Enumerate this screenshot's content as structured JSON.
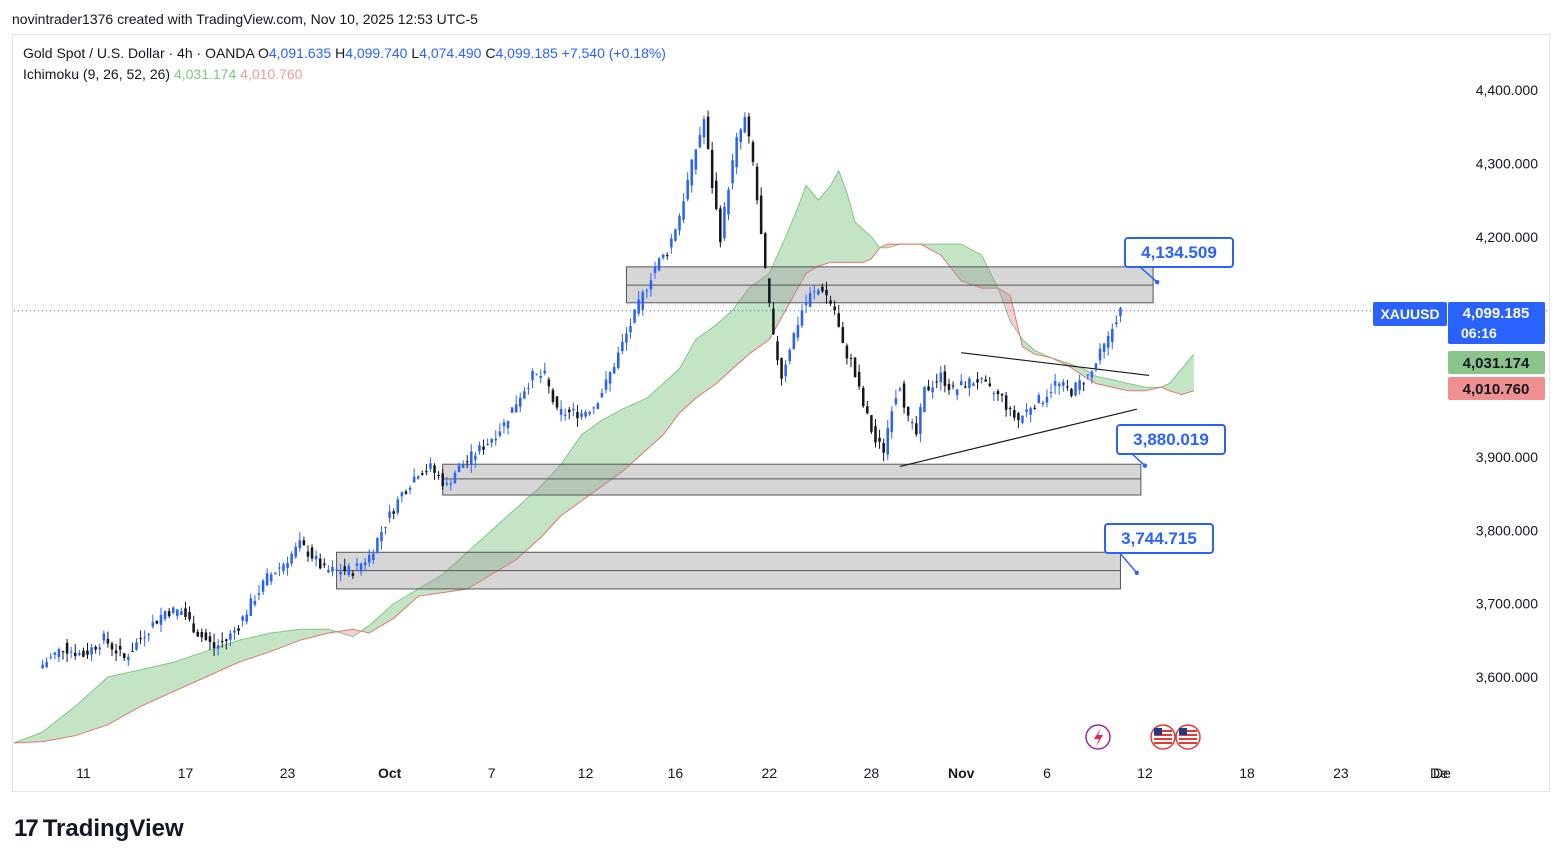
{
  "header": {
    "caption": "novintrader1376 created with TradingView.com, Nov 10, 2025 12:53 UTC-5"
  },
  "legend": {
    "symbol_line": "Gold Spot / U.S. Dollar · 4h · OANDA",
    "open_label": "O",
    "open": "4,091.635",
    "high_label": "H",
    "high": "4,099.740",
    "low_label": "L",
    "low": "4,074.490",
    "close_label": "C",
    "close": "4,099.185",
    "change": "+7.540 (+0.18%)",
    "indicator": "Ichimoku (9, 26, 52, 26)",
    "ind_value_1": "4,031.174",
    "ind_value_2": "4,010.760"
  },
  "footer": {
    "brand": "TradingView"
  },
  "colors": {
    "up": "#2962ff",
    "down": "#131722",
    "cloud_bull": "#a5d6a7",
    "cloud_bear": "#f7b8b8",
    "label_blue": "#2962ff",
    "price_green": "#8bc48b",
    "price_red": "#ef8f8f"
  },
  "chart_data": {
    "type": "candlestick",
    "title": "Gold Spot / U.S. Dollar · 4h · OANDA",
    "ylim": [
      3500,
      4440
    ],
    "y_ticks": [
      "4,400.000",
      "4,300.000",
      "4,200.000",
      "4,100.000",
      "4,000.000",
      "3,900.000",
      "3,800.000",
      "3,700.000",
      "3,600.000"
    ],
    "y_tick_values": [
      4400,
      4300,
      4200,
      4100,
      4000,
      3900,
      3800,
      3700,
      3600
    ],
    "x_ticks": [
      "11",
      "17",
      "23",
      "Oct",
      "7",
      "12",
      "16",
      "22",
      "28",
      "Nov",
      "6",
      "12",
      "18",
      "23",
      "De"
    ],
    "x_tick_index": [
      10,
      35,
      60,
      85,
      110,
      133,
      155,
      178,
      203,
      225,
      246,
      270,
      295,
      318,
      342
    ],
    "x_range": [
      -7,
      343
    ],
    "price_path": [
      [
        0,
        3617
      ],
      [
        5,
        3640
      ],
      [
        10,
        3630
      ],
      [
        15,
        3652
      ],
      [
        20,
        3625
      ],
      [
        25,
        3660
      ],
      [
        30,
        3690
      ],
      [
        34,
        3690
      ],
      [
        38,
        3660
      ],
      [
        42,
        3640
      ],
      [
        45,
        3650
      ],
      [
        48,
        3670
      ],
      [
        51,
        3700
      ],
      [
        55,
        3735
      ],
      [
        59,
        3755
      ],
      [
        63,
        3780
      ],
      [
        66,
        3765
      ],
      [
        69,
        3745
      ],
      [
        72,
        3745
      ],
      [
        76,
        3745
      ],
      [
        80,
        3765
      ],
      [
        84,
        3810
      ],
      [
        88,
        3850
      ],
      [
        92,
        3880
      ],
      [
        95,
        3885
      ],
      [
        99,
        3860
      ],
      [
        101,
        3880
      ],
      [
        105,
        3900
      ],
      [
        109,
        3920
      ],
      [
        113,
        3945
      ],
      [
        117,
        3985
      ],
      [
        120,
        4010
      ],
      [
        123,
        4010
      ],
      [
        126,
        3960
      ],
      [
        129,
        3960
      ],
      [
        132,
        3960
      ],
      [
        135,
        3970
      ],
      [
        138,
        4000
      ],
      [
        141,
        4040
      ],
      [
        144,
        4080
      ],
      [
        147,
        4120
      ],
      [
        150,
        4160
      ],
      [
        153,
        4180
      ],
      [
        156,
        4230
      ],
      [
        160,
        4320
      ],
      [
        162,
        4360
      ],
      [
        164,
        4270
      ],
      [
        166,
        4200
      ],
      [
        168,
        4270
      ],
      [
        170,
        4330
      ],
      [
        172,
        4360
      ],
      [
        174,
        4300
      ],
      [
        177,
        4150
      ],
      [
        179,
        4060
      ],
      [
        181,
        4010
      ],
      [
        183,
        4050
      ],
      [
        186,
        4100
      ],
      [
        188,
        4120
      ],
      [
        191,
        4130
      ],
      [
        194,
        4100
      ],
      [
        196,
        4050
      ],
      [
        198,
        4030
      ],
      [
        201,
        3970
      ],
      [
        204,
        3920
      ],
      [
        206,
        3910
      ],
      [
        208,
        3970
      ],
      [
        210,
        4000
      ],
      [
        212,
        3950
      ],
      [
        214,
        3930
      ],
      [
        216,
        3990
      ],
      [
        218,
        4000
      ],
      [
        220,
        4010
      ],
      [
        223,
        3990
      ],
      [
        226,
        4000
      ],
      [
        229,
        4005
      ],
      [
        232,
        3990
      ],
      [
        235,
        3980
      ],
      [
        237,
        3960
      ],
      [
        239,
        3950
      ],
      [
        242,
        3970
      ],
      [
        245,
        3980
      ],
      [
        248,
        4000
      ],
      [
        250,
        3995
      ],
      [
        252,
        3990
      ],
      [
        255,
        4005
      ],
      [
        257,
        4015
      ],
      [
        259,
        4040
      ],
      [
        261,
        4060
      ],
      [
        263,
        4090
      ],
      [
        264,
        4099
      ]
    ],
    "cloud_span_a": [
      [
        -7,
        3510
      ],
      [
        0,
        3525
      ],
      [
        8,
        3560
      ],
      [
        16,
        3600
      ],
      [
        24,
        3610
      ],
      [
        32,
        3620
      ],
      [
        40,
        3635
      ],
      [
        48,
        3650
      ],
      [
        56,
        3660
      ],
      [
        63,
        3665
      ],
      [
        70,
        3665
      ],
      [
        76,
        3655
      ],
      [
        80,
        3670
      ],
      [
        86,
        3700
      ],
      [
        92,
        3720
      ],
      [
        98,
        3740
      ],
      [
        104,
        3770
      ],
      [
        110,
        3800
      ],
      [
        116,
        3830
      ],
      [
        122,
        3860
      ],
      [
        127,
        3890
      ],
      [
        132,
        3930
      ],
      [
        137,
        3950
      ],
      [
        142,
        3965
      ],
      [
        148,
        3980
      ],
      [
        152,
        4000
      ],
      [
        156,
        4020
      ],
      [
        160,
        4060
      ],
      [
        165,
        4080
      ],
      [
        169,
        4100
      ],
      [
        173,
        4130
      ],
      [
        178,
        4150
      ],
      [
        182,
        4200
      ],
      [
        185,
        4240
      ],
      [
        187,
        4270
      ],
      [
        190,
        4250
      ],
      [
        193,
        4270
      ],
      [
        195,
        4290
      ],
      [
        197,
        4260
      ],
      [
        199,
        4220
      ],
      [
        201,
        4210
      ],
      [
        203,
        4200
      ],
      [
        205,
        4185
      ],
      [
        207,
        4185
      ],
      [
        210,
        4190
      ],
      [
        215,
        4190
      ],
      [
        220,
        4190
      ],
      [
        225,
        4190
      ],
      [
        230,
        4175
      ],
      [
        234,
        4130
      ],
      [
        237,
        4085
      ],
      [
        240,
        4060
      ],
      [
        243,
        4045
      ],
      [
        247,
        4035
      ],
      [
        251,
        4028
      ],
      [
        255,
        4020
      ],
      [
        258,
        4010
      ],
      [
        262,
        4005
      ],
      [
        266,
        4000
      ],
      [
        270,
        3995
      ],
      [
        274,
        3995
      ],
      [
        276,
        4000
      ],
      [
        279,
        4020
      ],
      [
        282,
        4040
      ]
    ],
    "cloud_span_b": [
      [
        -7,
        3510
      ],
      [
        0,
        3512
      ],
      [
        8,
        3520
      ],
      [
        16,
        3535
      ],
      [
        24,
        3560
      ],
      [
        32,
        3580
      ],
      [
        40,
        3600
      ],
      [
        48,
        3620
      ],
      [
        56,
        3635
      ],
      [
        63,
        3650
      ],
      [
        70,
        3660
      ],
      [
        76,
        3665
      ],
      [
        80,
        3660
      ],
      [
        86,
        3680
      ],
      [
        92,
        3710
      ],
      [
        98,
        3715
      ],
      [
        104,
        3720
      ],
      [
        110,
        3740
      ],
      [
        116,
        3760
      ],
      [
        122,
        3790
      ],
      [
        127,
        3820
      ],
      [
        132,
        3840
      ],
      [
        137,
        3860
      ],
      [
        142,
        3880
      ],
      [
        148,
        3910
      ],
      [
        152,
        3930
      ],
      [
        156,
        3960
      ],
      [
        160,
        3980
      ],
      [
        165,
        4000
      ],
      [
        169,
        4020
      ],
      [
        173,
        4040
      ],
      [
        178,
        4060
      ],
      [
        182,
        4100
      ],
      [
        185,
        4130
      ],
      [
        187,
        4150
      ],
      [
        190,
        4160
      ],
      [
        193,
        4165
      ],
      [
        195,
        4165
      ],
      [
        197,
        4165
      ],
      [
        199,
        4165
      ],
      [
        201,
        4165
      ],
      [
        203,
        4170
      ],
      [
        205,
        4185
      ],
      [
        207,
        4190
      ],
      [
        210,
        4190
      ],
      [
        215,
        4190
      ],
      [
        220,
        4175
      ],
      [
        225,
        4140
      ],
      [
        230,
        4130
      ],
      [
        234,
        4130
      ],
      [
        237,
        4120
      ],
      [
        240,
        4050
      ],
      [
        243,
        4040
      ],
      [
        247,
        4035
      ],
      [
        251,
        4025
      ],
      [
        255,
        4010
      ],
      [
        258,
        4000
      ],
      [
        262,
        3995
      ],
      [
        266,
        3990
      ],
      [
        270,
        3990
      ],
      [
        274,
        3995
      ],
      [
        276,
        3990
      ],
      [
        279,
        3985
      ],
      [
        282,
        3990
      ]
    ],
    "zones": [
      {
        "x0": 143,
        "x1": 272,
        "y_low": 4110,
        "y_mid": 4134,
        "y_high": 4159
      },
      {
        "x0": 98,
        "x1": 269,
        "y_low": 3848,
        "y_mid": 3870,
        "y_high": 3890
      },
      {
        "x0": 72,
        "x1": 264,
        "y_low": 3720,
        "y_mid": 3745,
        "y_high": 3770
      }
    ],
    "annotations": [
      {
        "text": "4,134.509",
        "anchor_x": 273,
        "anchor_y": 4138
      },
      {
        "text": "3,880.019",
        "anchor_x": 270,
        "anchor_y": 3888
      },
      {
        "text": "3,744.715",
        "anchor_x": 268,
        "anchor_y": 3742
      }
    ],
    "triangle": {
      "upper": [
        [
          225,
          4042
        ],
        [
          271,
          4011
        ]
      ],
      "lower": [
        [
          210,
          3887
        ],
        [
          268,
          3965
        ]
      ]
    },
    "last_price": 4099.185,
    "price_labels": {
      "symbol": "XAUUSD",
      "price": "4,099.185",
      "countdown": "06:16",
      "span_a": "4,031.174",
      "span_b": "4,010.760"
    }
  }
}
